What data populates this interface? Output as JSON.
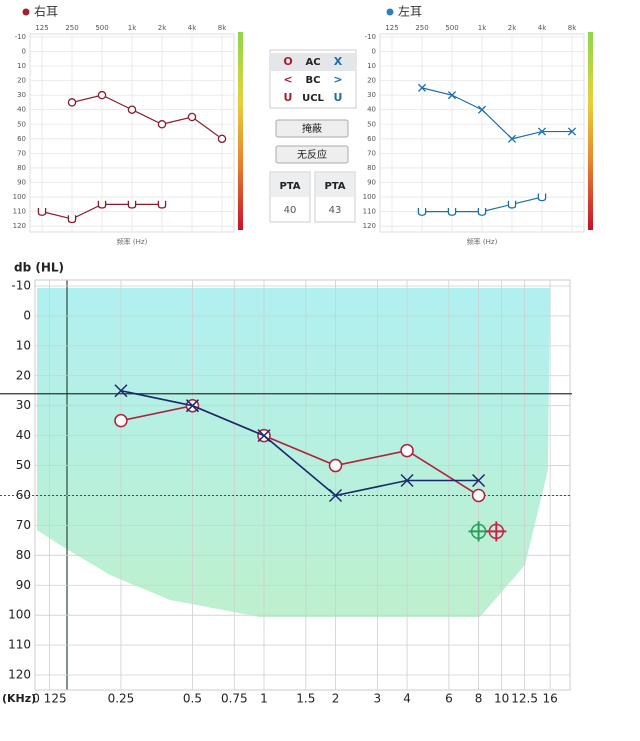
{
  "chart_data": [
    {
      "type": "line",
      "title": "右耳",
      "title_dot_color": "#a31f34",
      "xlabel": "频率 (Hz)",
      "categories": [
        "125",
        "250",
        "500",
        "1k",
        "2k",
        "4k",
        "8k"
      ],
      "ylim": [
        -12,
        124
      ],
      "yticks": [
        -10,
        0,
        10,
        20,
        30,
        40,
        50,
        60,
        70,
        80,
        90,
        100,
        110,
        120
      ],
      "y_inverted": true,
      "grid": true,
      "series": [
        {
          "color": "#8b1a2b",
          "marker": "circle",
          "values": [
            null,
            35,
            30,
            40,
            50,
            45,
            60
          ]
        },
        {
          "color": "#8b1a2b",
          "marker": "u",
          "values": [
            110,
            115,
            105,
            105,
            105,
            null,
            null
          ]
        }
      ]
    },
    {
      "type": "line",
      "title": "左耳",
      "title_dot_color": "#2a7fc0",
      "xlabel": "频率 (Hz)",
      "categories": [
        "125",
        "250",
        "500",
        "1k",
        "2k",
        "4k",
        "8k"
      ],
      "ylim": [
        -12,
        124
      ],
      "yticks": [
        -10,
        0,
        10,
        20,
        30,
        40,
        50,
        60,
        70,
        80,
        90,
        100,
        110,
        120
      ],
      "y_inverted": true,
      "grid": true,
      "series": [
        {
          "color": "#1b6fa8",
          "marker": "x",
          "values": [
            null,
            25,
            30,
            40,
            60,
            55,
            55
          ]
        },
        {
          "color": "#1b6fa8",
          "marker": "u",
          "values": [
            null,
            110,
            110,
            110,
            105,
            100,
            null
          ]
        }
      ]
    },
    {
      "type": "line",
      "ylabel": "db (HL)",
      "xlabel": "(KHz)",
      "xscale": "log",
      "xlim": [
        0.1087,
        19.4
      ],
      "ylim": [
        -12,
        125
      ],
      "y_inverted": true,
      "grid": true,
      "xticks": [
        {
          "value": 0.125,
          "label": "0 125"
        },
        0.25,
        0.5,
        0.75,
        1,
        1.5,
        2,
        3,
        4,
        6,
        8,
        10,
        12.5,
        16
      ],
      "yticks": [
        -10,
        0,
        10,
        20,
        30,
        40,
        50,
        60,
        70,
        80,
        90,
        100,
        110,
        120
      ],
      "reference_lines": [
        {
          "value": 26,
          "color": "#333333",
          "style": "solid"
        },
        {
          "value": 60,
          "color": "#2a4fa0",
          "style": "dotted"
        }
      ],
      "series": [
        {
          "color": "#b0203a",
          "marker": "circle",
          "x": [
            0.25,
            0.5,
            1,
            2,
            4,
            8
          ],
          "values": [
            35,
            30,
            40,
            50,
            45,
            60
          ]
        },
        {
          "color": "#1a2a6c",
          "marker": "x",
          "x": [
            0.25,
            0.5,
            1,
            2,
            4,
            8
          ],
          "values": [
            25,
            30,
            40,
            60,
            55,
            55
          ]
        },
        {
          "color": "#2a9d5a",
          "marker": "circle-cross",
          "x": [
            8
          ],
          "values": [
            72
          ]
        },
        {
          "color": "#d0204a",
          "marker": "circle-cross",
          "x": [
            9.5
          ],
          "values": [
            72
          ]
        }
      ]
    }
  ],
  "panel": {
    "legend": [
      {
        "left": "O",
        "label": "AC",
        "right": "X"
      },
      {
        "left": "<",
        "label": "BC",
        "right": ">"
      },
      {
        "left": "U",
        "label": "UCL",
        "right": "U"
      }
    ],
    "buttons": [
      "掩蔽",
      "无反应"
    ],
    "pta": [
      {
        "label": "PTA",
        "value": "40"
      },
      {
        "label": "PTA",
        "value": "43"
      }
    ]
  }
}
